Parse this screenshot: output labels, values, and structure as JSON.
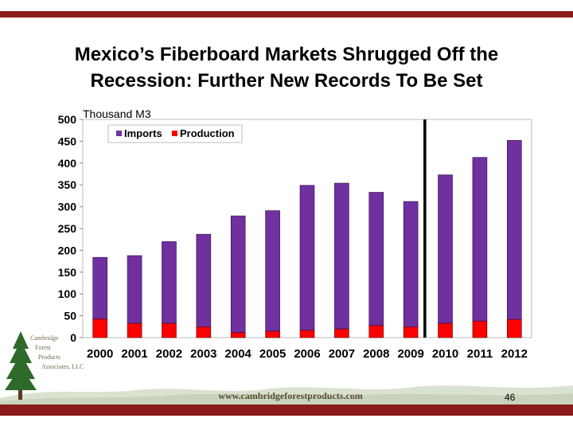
{
  "title": {
    "line1": "Mexico’s Fiberboard Markets Shrugged Off the",
    "line2": "Recession: Further New Records To Be Set"
  },
  "footer": {
    "url": "www.cambridgeforestproducts.com",
    "page_number": "46",
    "logo_text": [
      "Cambridge",
      "Forest",
      "Products",
      "Associates, LLC"
    ]
  },
  "colors": {
    "bar_imports": "#7030a0",
    "bar_production": "#ff0000",
    "brand_band": "#8b1a1a"
  },
  "chart_data": {
    "type": "bar",
    "stacked": true,
    "ylabel": "Thousand M3",
    "categories": [
      "2000",
      "2001",
      "2002",
      "2003",
      "2004",
      "2005",
      "2006",
      "2007",
      "2008",
      "2009",
      "2010",
      "2011",
      "2012"
    ],
    "series": [
      {
        "name": "Production",
        "values": [
          43,
          33,
          33,
          25,
          12,
          15,
          17,
          20,
          28,
          25,
          33,
          38,
          42
        ]
      },
      {
        "name": "Imports",
        "values": [
          141,
          155,
          187,
          212,
          267,
          276,
          332,
          334,
          305,
          287,
          340,
          375,
          410
        ]
      }
    ],
    "ylim": [
      0,
      500
    ],
    "yticks": [
      0,
      50,
      100,
      150,
      200,
      250,
      300,
      350,
      400,
      450,
      500
    ],
    "legend_position": "top-left",
    "divider_after": "2009"
  }
}
